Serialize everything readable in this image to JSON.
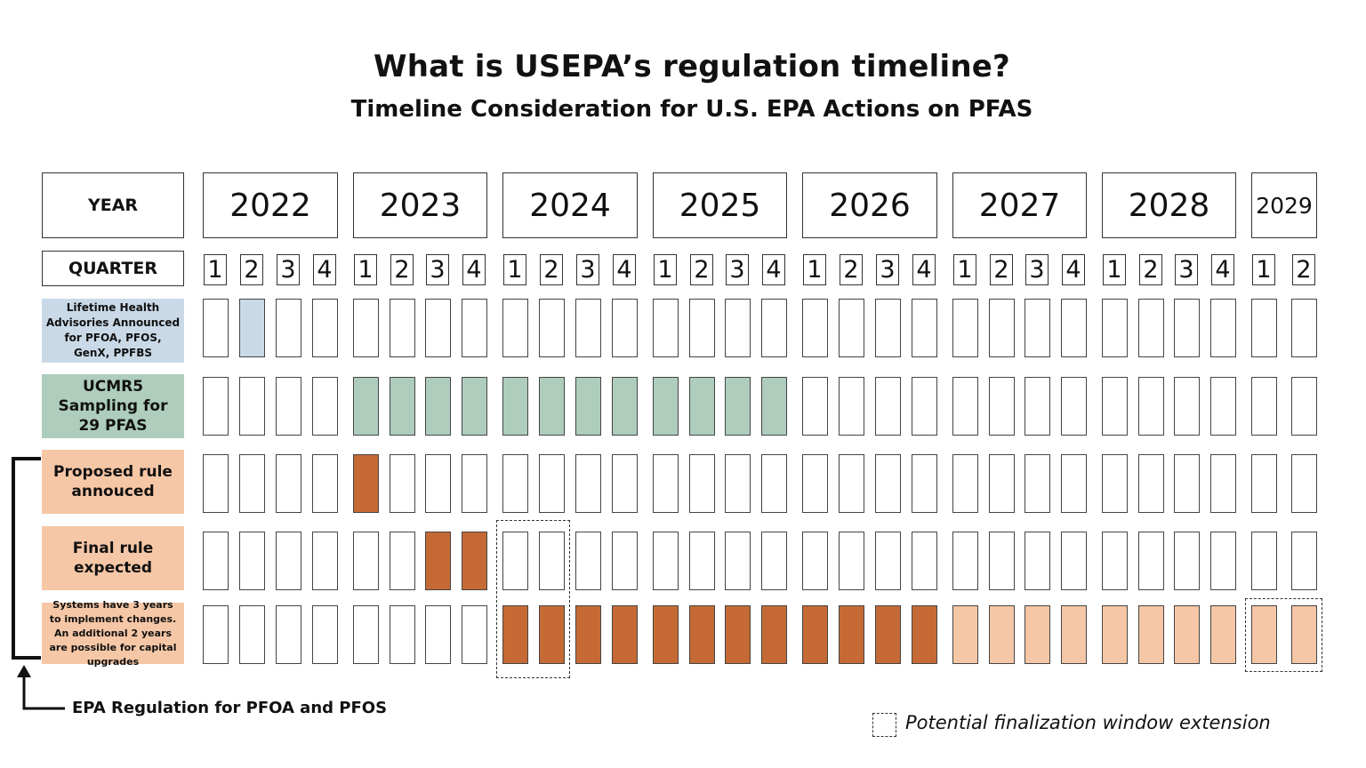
{
  "header": {
    "title": "What is USEPA’s regulation timeline?",
    "subtitle": "Timeline Consideration for U.S. EPA Actions on PFAS"
  },
  "labels": {
    "year": "YEAR",
    "quarter": "QUARTER"
  },
  "years": [
    {
      "label": "2022",
      "quarters": 4
    },
    {
      "label": "2023",
      "quarters": 4
    },
    {
      "label": "2024",
      "quarters": 4
    },
    {
      "label": "2025",
      "quarters": 4
    },
    {
      "label": "2026",
      "quarters": 4
    },
    {
      "label": "2027",
      "quarters": 4
    },
    {
      "label": "2028",
      "quarters": 4
    },
    {
      "label": "2029",
      "quarters": 2
    }
  ],
  "colors": {
    "advisory": "#c9d9e7",
    "ucmr5": "#aecdbc",
    "rule_label": "#f6c7a6",
    "rule_fill": "#c56a35",
    "extension_fill": "#f6c7a6"
  },
  "rows": [
    {
      "label": "Lifetime Health Advisories Announced for PFOA, PFOS, GenX, PPFBS",
      "color_key": "advisory",
      "filled": [
        {
          "from": 1,
          "to": 1,
          "color_key": "advisory"
        }
      ]
    },
    {
      "label": "UCMR5 Sampling for 29 PFAS",
      "color_key": "ucmr5",
      "filled": [
        {
          "from": 4,
          "to": 15,
          "color_key": "ucmr5"
        }
      ]
    },
    {
      "label": "Proposed rule annouced",
      "color_key": "rule_label",
      "filled": [
        {
          "from": 4,
          "to": 4,
          "color_key": "rule_fill"
        }
      ]
    },
    {
      "label": "Final rule expected",
      "color_key": "rule_label",
      "filled": [
        {
          "from": 6,
          "to": 7,
          "color_key": "rule_fill"
        }
      ]
    },
    {
      "label": "Systems have 3 years to implement changes. An additional 2 years are possible for capital upgrades",
      "color_key": "rule_label",
      "filled": [
        {
          "from": 8,
          "to": 19,
          "color_key": "rule_fill"
        },
        {
          "from": 20,
          "to": 29,
          "color_key": "extension_fill"
        }
      ]
    }
  ],
  "dashed_windows": [
    {
      "row_from": 3,
      "row_to": 4,
      "col_from": 8,
      "col_to": 9
    },
    {
      "row_from": 4,
      "row_to": 4,
      "col_from": 28,
      "col_to": 29
    }
  ],
  "bracket_note": "EPA Regulation for PFOA and PFOS",
  "legend": "Potential finalization window extension"
}
